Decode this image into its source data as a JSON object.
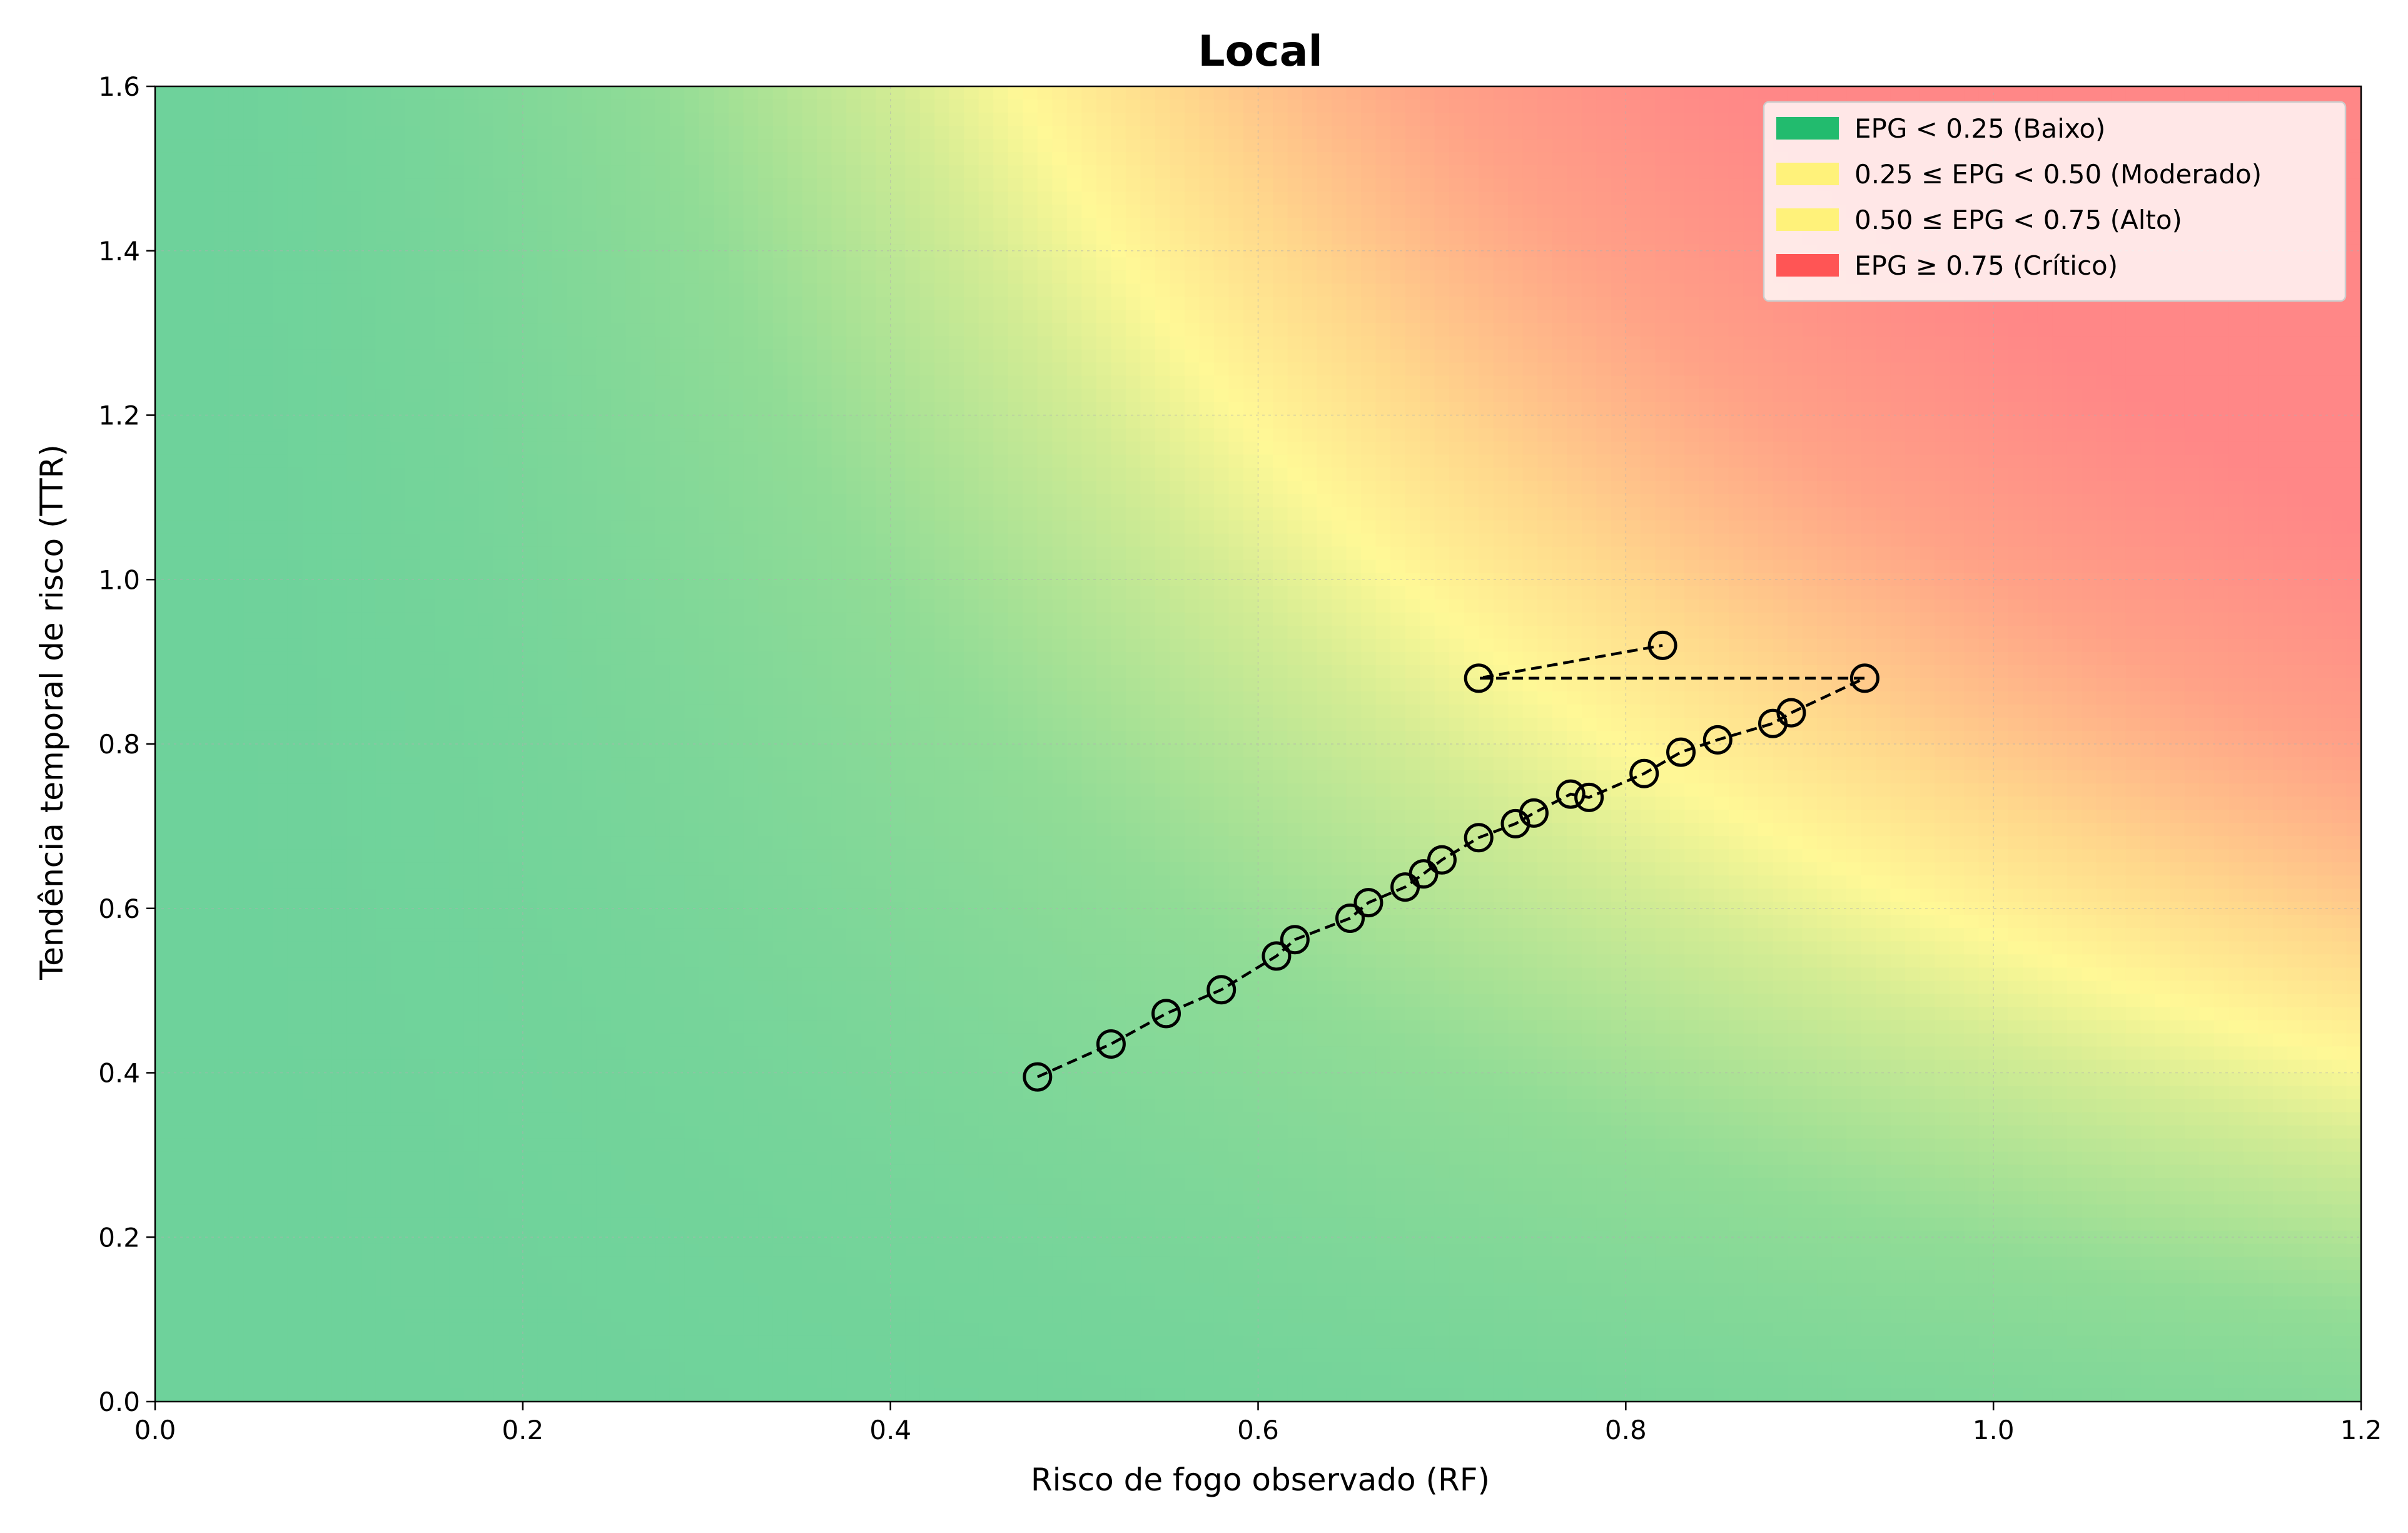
{
  "chart_data": {
    "type": "scatter",
    "title": "Local",
    "xlabel": "Risco de fogo observado (RF)",
    "ylabel": "Tendência temporal de risco (TTR)",
    "xlim": [
      0.0,
      1.2
    ],
    "ylim": [
      0.0,
      1.6
    ],
    "xticks": [
      "0.0",
      "0.2",
      "0.4",
      "0.6",
      "0.8",
      "1.0",
      "1.2"
    ],
    "yticks": [
      "0.0",
      "0.2",
      "0.4",
      "0.6",
      "0.8",
      "1.0",
      "1.2",
      "1.4",
      "1.6"
    ],
    "grid": true,
    "background": "EPG gradient field (green → yellow → red)",
    "legend": {
      "placement": "top-right",
      "entries": [
        {
          "label": "EPG < 0.25 (Baixo)",
          "color": "#22bb6e"
        },
        {
          "label": "0.25 ≤ EPG < 0.50 (Moderado)",
          "color": "#fff27a"
        },
        {
          "label": "0.50 ≤ EPG < 0.75 (Alto)",
          "color": "#fff27a"
        },
        {
          "label": "EPG ≥ 0.75 (Crítico)",
          "color": "#ff5555"
        }
      ]
    },
    "series": [
      {
        "style": "dashed line with open circle markers",
        "color": "#000000",
        "points": [
          {
            "x": 0.48,
            "y": 0.395
          },
          {
            "x": 0.52,
            "y": 0.435
          },
          {
            "x": 0.55,
            "y": 0.472
          },
          {
            "x": 0.58,
            "y": 0.501
          },
          {
            "x": 0.61,
            "y": 0.542
          },
          {
            "x": 0.62,
            "y": 0.562
          },
          {
            "x": 0.65,
            "y": 0.588
          },
          {
            "x": 0.66,
            "y": 0.607
          },
          {
            "x": 0.68,
            "y": 0.626
          },
          {
            "x": 0.69,
            "y": 0.642
          },
          {
            "x": 0.7,
            "y": 0.659
          },
          {
            "x": 0.72,
            "y": 0.686
          },
          {
            "x": 0.74,
            "y": 0.703
          },
          {
            "x": 0.75,
            "y": 0.716
          },
          {
            "x": 0.77,
            "y": 0.739
          },
          {
            "x": 0.78,
            "y": 0.735
          },
          {
            "x": 0.81,
            "y": 0.764
          },
          {
            "x": 0.83,
            "y": 0.79
          },
          {
            "x": 0.85,
            "y": 0.805
          },
          {
            "x": 0.88,
            "y": 0.825
          },
          {
            "x": 0.89,
            "y": 0.838
          },
          {
            "x": 0.93,
            "y": 0.88
          },
          {
            "x": 0.72,
            "y": 0.88
          },
          {
            "x": 0.82,
            "y": 0.92
          }
        ]
      }
    ]
  }
}
